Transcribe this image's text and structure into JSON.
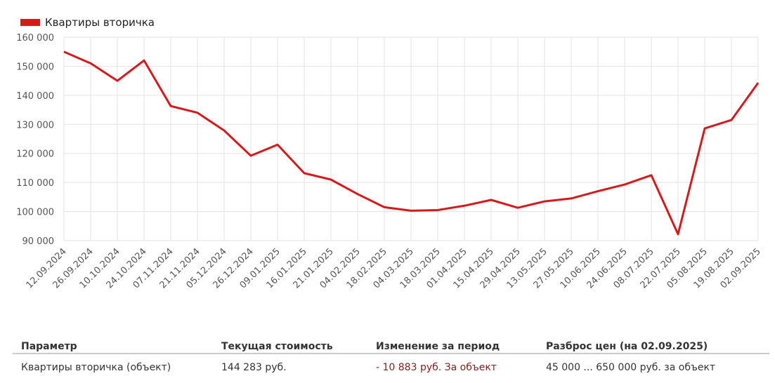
{
  "chart_data": {
    "type": "line",
    "categories": [
      "12.09.2024",
      "26.09.2024",
      "10.10.2024",
      "24.10.2024",
      "07.11.2024",
      "21.11.2024",
      "05.12.2024",
      "26.12.2024",
      "09.01.2025",
      "16.01.2025",
      "21.01.2025",
      "04.02.2025",
      "18.02.2025",
      "04.03.2025",
      "18.03.2025",
      "01.04.2025",
      "15.04.2025",
      "29.04.2025",
      "13.05.2025",
      "27.05.2025",
      "10.06.2025",
      "24.06.2025",
      "08.07.2025",
      "22.07.2025",
      "05.08.2025",
      "19.08.2025",
      "02.09.2025"
    ],
    "series": [
      {
        "name": "Квартиры вторичка",
        "color": "#d7191c",
        "values": [
          155000,
          151000,
          145000,
          152000,
          136300,
          134000,
          127900,
          119200,
          123000,
          113200,
          111000,
          106000,
          101500,
          100300,
          100500,
          102000,
          104000,
          101300,
          103500,
          104500,
          107000,
          109300,
          112500,
          92200,
          128600,
          131500,
          144283
        ]
      }
    ],
    "ylim": [
      90000,
      160000
    ],
    "yticks": [
      {
        "value": 90000,
        "label": "90 000"
      },
      {
        "value": 100000,
        "label": "100 000"
      },
      {
        "value": 110000,
        "label": "110 000"
      },
      {
        "value": 120000,
        "label": "120 000"
      },
      {
        "value": 130000,
        "label": "130 000"
      },
      {
        "value": 140000,
        "label": "140 000"
      },
      {
        "value": 150000,
        "label": "150 000"
      },
      {
        "value": 160000,
        "label": "160 000"
      }
    ],
    "grid": true
  },
  "table": {
    "headers": [
      "Параметр",
      "Текущая стоимость",
      "Изменение за период",
      "Разброс цен (на 02.09.2025)"
    ],
    "rows": [
      [
        "Квартиры вторичка (объект)",
        "144 283 руб.",
        "- 10 883 руб. За объект",
        "45 000 ... 650 000 руб. за объект"
      ]
    ]
  }
}
